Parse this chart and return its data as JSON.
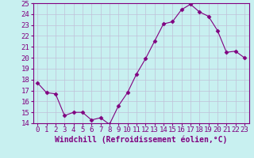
{
  "x": [
    0,
    1,
    2,
    3,
    4,
    5,
    6,
    7,
    8,
    9,
    10,
    11,
    12,
    13,
    14,
    15,
    16,
    17,
    18,
    19,
    20,
    21,
    22,
    23
  ],
  "y": [
    17.7,
    16.8,
    16.7,
    14.7,
    15.0,
    15.0,
    14.3,
    14.5,
    13.9,
    15.6,
    16.8,
    18.5,
    19.9,
    21.5,
    23.1,
    23.3,
    24.4,
    24.9,
    24.2,
    23.8,
    22.5,
    20.5,
    20.6,
    20.0
  ],
  "xlabel": "Windchill (Refroidissement éolien,°C)",
  "ylim": [
    14,
    25
  ],
  "yticks": [
    14,
    15,
    16,
    17,
    18,
    19,
    20,
    21,
    22,
    23,
    24,
    25
  ],
  "xticks": [
    0,
    1,
    2,
    3,
    4,
    5,
    6,
    7,
    8,
    9,
    10,
    11,
    12,
    13,
    14,
    15,
    16,
    17,
    18,
    19,
    20,
    21,
    22,
    23
  ],
  "line_color": "#800080",
  "marker": "D",
  "marker_size": 2.5,
  "bg_color": "#c8f0f0",
  "grid_color": "#c0c0d8",
  "spine_color": "#800080",
  "label_color": "#800080",
  "tick_color": "#800080",
  "xlabel_fontsize": 7,
  "tick_fontsize": 6.5
}
